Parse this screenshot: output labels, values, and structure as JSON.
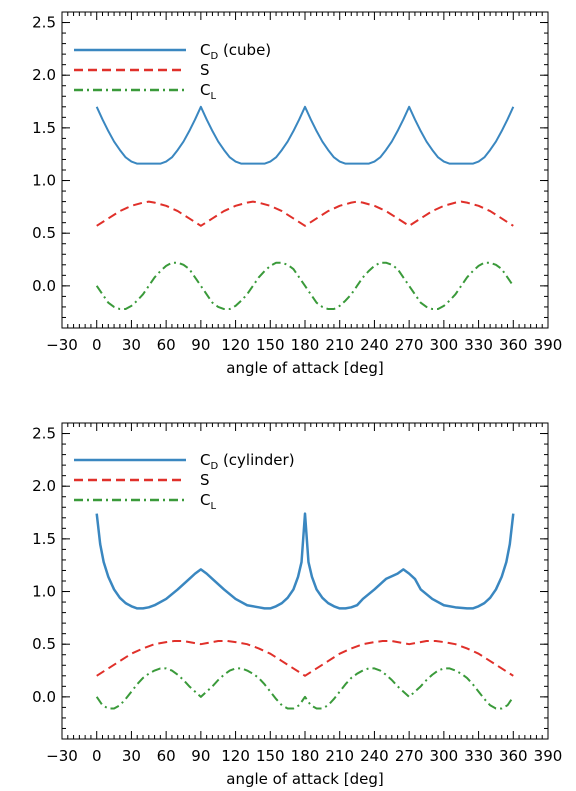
{
  "chart_data": [
    {
      "type": "line",
      "xlabel": "angle of attack [deg]",
      "ylabel": "",
      "xlim": [
        -30,
        390
      ],
      "ylim": [
        -0.4,
        2.6
      ],
      "xticks": [
        -30,
        0,
        30,
        60,
        90,
        120,
        150,
        180,
        210,
        240,
        270,
        300,
        330,
        360,
        390
      ],
      "yticks": [
        0.0,
        0.5,
        1.0,
        1.5,
        2.0,
        2.5
      ],
      "xtick_labels": [
        "−30",
        "0",
        "30",
        "60",
        "90",
        "120",
        "150",
        "180",
        "210",
        "240",
        "270",
        "300",
        "330",
        "360",
        "390"
      ],
      "ytick_labels": [
        "0.0",
        "0.5",
        "1.0",
        "1.5",
        "2.0",
        "2.5"
      ],
      "legend_position": "top-left",
      "grid": false,
      "series": [
        {
          "legend_main": "C",
          "legend_sub": "D",
          "legend_rest": " (cube)",
          "color": "#3a87c0",
          "style": "solid",
          "x": [
            0,
            5,
            10,
            15,
            20,
            25,
            30,
            35,
            40,
            45,
            50,
            55,
            60,
            65,
            70,
            75,
            80,
            85,
            90,
            95,
            100,
            105,
            110,
            115,
            120,
            125,
            130,
            135,
            140,
            145,
            150,
            155,
            160,
            165,
            170,
            175,
            180,
            185,
            190,
            195,
            200,
            205,
            210,
            215,
            220,
            225,
            230,
            235,
            240,
            245,
            250,
            255,
            260,
            265,
            270,
            275,
            280,
            285,
            290,
            295,
            300,
            305,
            310,
            315,
            320,
            325,
            330,
            335,
            340,
            345,
            350,
            355,
            360
          ],
          "y": [
            1.7,
            1.58,
            1.47,
            1.37,
            1.29,
            1.22,
            1.18,
            1.16,
            1.16,
            1.16,
            1.16,
            1.16,
            1.18,
            1.22,
            1.29,
            1.37,
            1.47,
            1.58,
            1.7,
            1.58,
            1.47,
            1.37,
            1.29,
            1.22,
            1.18,
            1.16,
            1.16,
            1.16,
            1.16,
            1.16,
            1.18,
            1.22,
            1.29,
            1.37,
            1.47,
            1.58,
            1.7,
            1.58,
            1.47,
            1.37,
            1.29,
            1.22,
            1.18,
            1.16,
            1.16,
            1.16,
            1.16,
            1.16,
            1.18,
            1.22,
            1.29,
            1.37,
            1.47,
            1.58,
            1.7,
            1.58,
            1.47,
            1.37,
            1.29,
            1.22,
            1.18,
            1.16,
            1.16,
            1.16,
            1.16,
            1.16,
            1.18,
            1.22,
            1.29,
            1.37,
            1.47,
            1.58,
            1.7
          ]
        },
        {
          "legend_main": "S",
          "legend_sub": "",
          "legend_rest": "",
          "color": "#e0302a",
          "style": "dashed",
          "x": [
            0,
            10,
            20,
            30,
            40,
            45,
            50,
            60,
            70,
            80,
            90,
            100,
            110,
            120,
            130,
            135,
            140,
            150,
            160,
            170,
            180,
            190,
            200,
            210,
            220,
            225,
            230,
            240,
            250,
            260,
            270,
            280,
            290,
            300,
            310,
            315,
            320,
            330,
            340,
            350,
            360
          ],
          "y": [
            0.57,
            0.64,
            0.71,
            0.76,
            0.79,
            0.8,
            0.79,
            0.76,
            0.71,
            0.64,
            0.57,
            0.64,
            0.71,
            0.76,
            0.79,
            0.8,
            0.79,
            0.76,
            0.71,
            0.64,
            0.57,
            0.64,
            0.71,
            0.76,
            0.79,
            0.8,
            0.79,
            0.76,
            0.71,
            0.64,
            0.57,
            0.64,
            0.71,
            0.76,
            0.79,
            0.8,
            0.79,
            0.76,
            0.71,
            0.64,
            0.57
          ]
        },
        {
          "legend_main": "C",
          "legend_sub": "L",
          "legend_rest": "",
          "color": "#3a9a3a",
          "style": "dashdot",
          "x": [
            0,
            5,
            10,
            15,
            20,
            22.5,
            25,
            30,
            35,
            40,
            45,
            50,
            55,
            60,
            65,
            67.5,
            70,
            75,
            80,
            85,
            90,
            95,
            100,
            105,
            110,
            112.5,
            115,
            120,
            125,
            130,
            135,
            140,
            145,
            150,
            155,
            157.5,
            160,
            165,
            170,
            175,
            180,
            185,
            190,
            195,
            200,
            202.5,
            205,
            210,
            215,
            220,
            225,
            230,
            235,
            240,
            245,
            247.5,
            250,
            255,
            260,
            265,
            270,
            275,
            280,
            285,
            290,
            292.5,
            295,
            300,
            305,
            310,
            315,
            320,
            325,
            330,
            335,
            337.5,
            340,
            345,
            350,
            355,
            360
          ],
          "y": [
            0.0,
            -0.08,
            -0.16,
            -0.2,
            -0.22,
            -0.22,
            -0.22,
            -0.19,
            -0.14,
            -0.08,
            0.0,
            0.08,
            0.14,
            0.19,
            0.22,
            0.22,
            0.22,
            0.2,
            0.16,
            0.08,
            0.0,
            -0.08,
            -0.16,
            -0.2,
            -0.22,
            -0.22,
            -0.22,
            -0.19,
            -0.14,
            -0.08,
            0.0,
            0.08,
            0.14,
            0.19,
            0.22,
            0.22,
            0.22,
            0.2,
            0.16,
            0.08,
            0.0,
            -0.08,
            -0.16,
            -0.2,
            -0.22,
            -0.22,
            -0.22,
            -0.19,
            -0.14,
            -0.08,
            0.0,
            0.08,
            0.14,
            0.19,
            0.22,
            0.22,
            0.22,
            0.2,
            0.16,
            0.08,
            0.0,
            -0.08,
            -0.16,
            -0.2,
            -0.22,
            -0.22,
            -0.22,
            -0.19,
            -0.14,
            -0.08,
            0.0,
            0.08,
            0.14,
            0.19,
            0.22,
            0.22,
            0.22,
            0.2,
            0.16,
            0.08,
            0.0
          ]
        }
      ]
    },
    {
      "type": "line",
      "xlabel": "angle of attack [deg]",
      "ylabel": "",
      "xlim": [
        -30,
        390
      ],
      "ylim": [
        -0.4,
        2.6
      ],
      "xticks": [
        -30,
        0,
        30,
        60,
        90,
        120,
        150,
        180,
        210,
        240,
        270,
        300,
        330,
        360,
        390
      ],
      "yticks": [
        0.0,
        0.5,
        1.0,
        1.5,
        2.0,
        2.5
      ],
      "xtick_labels": [
        "−30",
        "0",
        "30",
        "60",
        "90",
        "120",
        "150",
        "180",
        "210",
        "240",
        "270",
        "300",
        "330",
        "360",
        "390"
      ],
      "ytick_labels": [
        "0.0",
        "0.5",
        "1.0",
        "1.5",
        "2.0",
        "2.5"
      ],
      "legend_position": "top-left",
      "grid": false,
      "series": [
        {
          "legend_main": "C",
          "legend_sub": "D",
          "legend_rest": " (cylinder)",
          "color": "#3a87c0",
          "style": "solid",
          "x": [
            0,
            3,
            6,
            10,
            15,
            20,
            25,
            30,
            35,
            40,
            45,
            50,
            60,
            70,
            80,
            85,
            90,
            95,
            100,
            110,
            120,
            130,
            140,
            145,
            150,
            155,
            160,
            165,
            170,
            174,
            177,
            180,
            183,
            186,
            190,
            195,
            200,
            205,
            210,
            215,
            220,
            225,
            230,
            240,
            250,
            260,
            265,
            270,
            275,
            280,
            290,
            300,
            310,
            320,
            325,
            330,
            335,
            340,
            345,
            350,
            354,
            357,
            360
          ],
          "y": [
            1.74,
            1.45,
            1.28,
            1.14,
            1.02,
            0.94,
            0.89,
            0.86,
            0.84,
            0.84,
            0.85,
            0.87,
            0.93,
            1.02,
            1.12,
            1.17,
            1.21,
            1.17,
            1.12,
            1.02,
            0.93,
            0.87,
            0.85,
            0.84,
            0.84,
            0.86,
            0.89,
            0.94,
            1.02,
            1.14,
            1.28,
            1.74,
            1.28,
            1.14,
            1.02,
            0.94,
            0.89,
            0.86,
            0.84,
            0.84,
            0.85,
            0.87,
            0.93,
            1.02,
            1.12,
            1.17,
            1.21,
            1.17,
            1.12,
            1.02,
            0.93,
            0.87,
            0.85,
            0.84,
            0.84,
            0.86,
            0.89,
            0.94,
            1.02,
            1.14,
            1.28,
            1.45,
            1.74
          ]
        },
        {
          "legend_main": "S",
          "legend_sub": "",
          "legend_rest": "",
          "color": "#e0302a",
          "style": "dashed",
          "x": [
            0,
            10,
            20,
            30,
            40,
            50,
            60,
            67,
            75,
            85,
            90,
            95,
            105,
            113,
            120,
            130,
            140,
            150,
            160,
            170,
            180,
            190,
            200,
            210,
            220,
            230,
            240,
            247,
            255,
            265,
            270,
            275,
            285,
            293,
            300,
            310,
            320,
            330,
            340,
            350,
            360
          ],
          "y": [
            0.2,
            0.27,
            0.34,
            0.41,
            0.46,
            0.5,
            0.52,
            0.53,
            0.53,
            0.51,
            0.5,
            0.51,
            0.53,
            0.53,
            0.52,
            0.5,
            0.46,
            0.41,
            0.34,
            0.27,
            0.2,
            0.27,
            0.34,
            0.41,
            0.46,
            0.5,
            0.52,
            0.53,
            0.53,
            0.51,
            0.5,
            0.51,
            0.53,
            0.53,
            0.52,
            0.5,
            0.46,
            0.41,
            0.34,
            0.27,
            0.2
          ]
        },
        {
          "legend_main": "C",
          "legend_sub": "L",
          "legend_rest": "",
          "color": "#3a9a3a",
          "style": "dashdot",
          "x": [
            0,
            5,
            10,
            15,
            20,
            25,
            30,
            35,
            40,
            45,
            50,
            55,
            60,
            65,
            70,
            75,
            80,
            85,
            88,
            90,
            92,
            95,
            100,
            105,
            110,
            115,
            120,
            125,
            130,
            135,
            140,
            145,
            150,
            155,
            160,
            165,
            170,
            175,
            180,
            185,
            190,
            195,
            200,
            205,
            210,
            215,
            220,
            225,
            230,
            235,
            240,
            245,
            250,
            255,
            260,
            265,
            268,
            270,
            272,
            275,
            280,
            285,
            290,
            295,
            300,
            305,
            310,
            315,
            320,
            325,
            330,
            335,
            340,
            345,
            350,
            355,
            360
          ],
          "y": [
            0.0,
            -0.08,
            -0.11,
            -0.11,
            -0.08,
            -0.02,
            0.05,
            0.12,
            0.18,
            0.22,
            0.25,
            0.27,
            0.27,
            0.25,
            0.21,
            0.16,
            0.1,
            0.05,
            0.02,
            0.0,
            0.02,
            0.05,
            0.1,
            0.16,
            0.21,
            0.25,
            0.27,
            0.27,
            0.25,
            0.22,
            0.18,
            0.12,
            0.05,
            -0.02,
            -0.08,
            -0.11,
            -0.11,
            -0.08,
            0.0,
            -0.08,
            -0.11,
            -0.11,
            -0.08,
            -0.02,
            0.05,
            0.12,
            0.18,
            0.22,
            0.25,
            0.27,
            0.27,
            0.25,
            0.21,
            0.16,
            0.1,
            0.05,
            0.02,
            0.0,
            0.02,
            0.05,
            0.1,
            0.16,
            0.21,
            0.25,
            0.27,
            0.27,
            0.25,
            0.22,
            0.18,
            0.12,
            0.05,
            -0.02,
            -0.08,
            -0.11,
            -0.11,
            -0.08,
            0.0
          ]
        }
      ]
    }
  ]
}
